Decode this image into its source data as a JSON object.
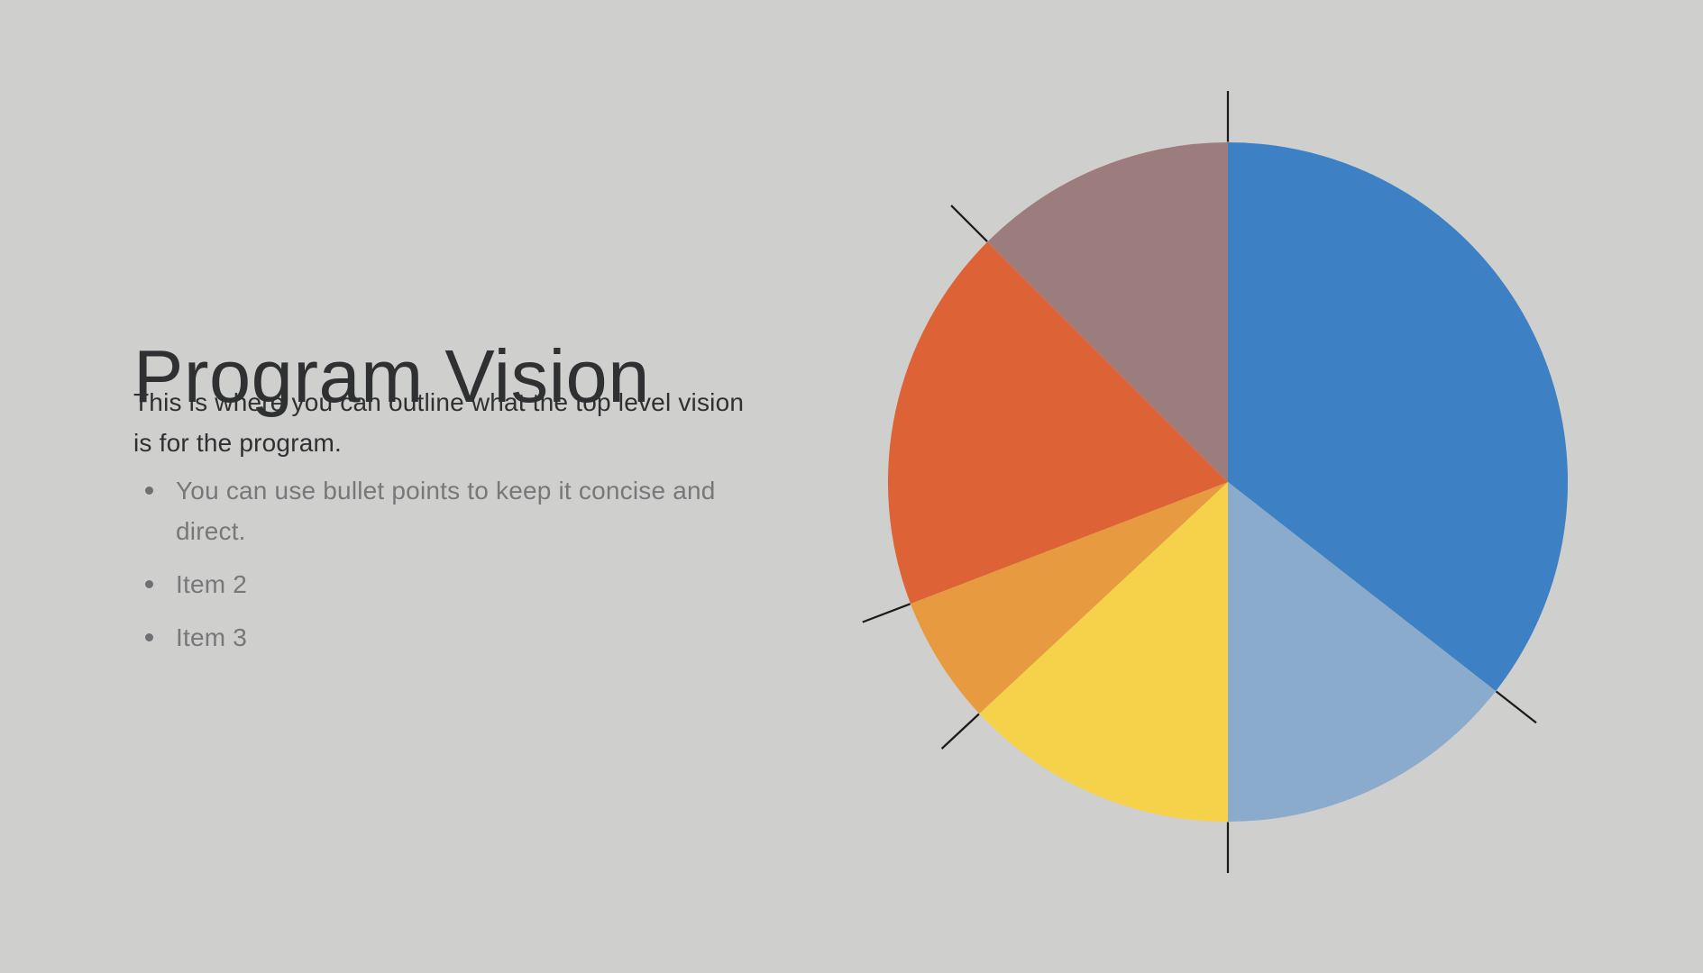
{
  "slide": {
    "title": "Program Vision",
    "subtitle": {
      "lines": [
        "This is where you can outline what the top level vision",
        "is for the program."
      ]
    },
    "bullets": [
      {
        "lines": [
          "You can use bullet points to keep it concise and",
          "direct."
        ]
      },
      {
        "lines": [
          "Item 2"
        ]
      },
      {
        "lines": [
          "Item 3"
        ]
      }
    ]
  },
  "colors": {
    "background": "#CFCFCD",
    "title_text": "#2F3032",
    "body_text": "#2F3032",
    "bullet_text": "#77787A",
    "tick": "#1B1B1B"
  },
  "chart_data": {
    "type": "pie",
    "title": "",
    "legend": false,
    "data_labels": false,
    "start_angle_deg": 0,
    "direction": "clockwise",
    "boundary_ticks": true,
    "slices": [
      {
        "name": "blue",
        "color": "#3E80C4",
        "degrees": 128,
        "percent": 35.6
      },
      {
        "name": "steel-blue",
        "color": "#8AABCB",
        "degrees": 52,
        "percent": 14.4
      },
      {
        "name": "yellow",
        "color": "#F6D24A",
        "degrees": 47,
        "percent": 13.1
      },
      {
        "name": "orange",
        "color": "#E79A3F",
        "degrees": 22,
        "percent": 6.1
      },
      {
        "name": "vermilion",
        "color": "#DD6236",
        "degrees": 66,
        "percent": 18.3
      },
      {
        "name": "mauve",
        "color": "#9C7C7D",
        "degrees": 45,
        "percent": 12.5
      }
    ]
  }
}
